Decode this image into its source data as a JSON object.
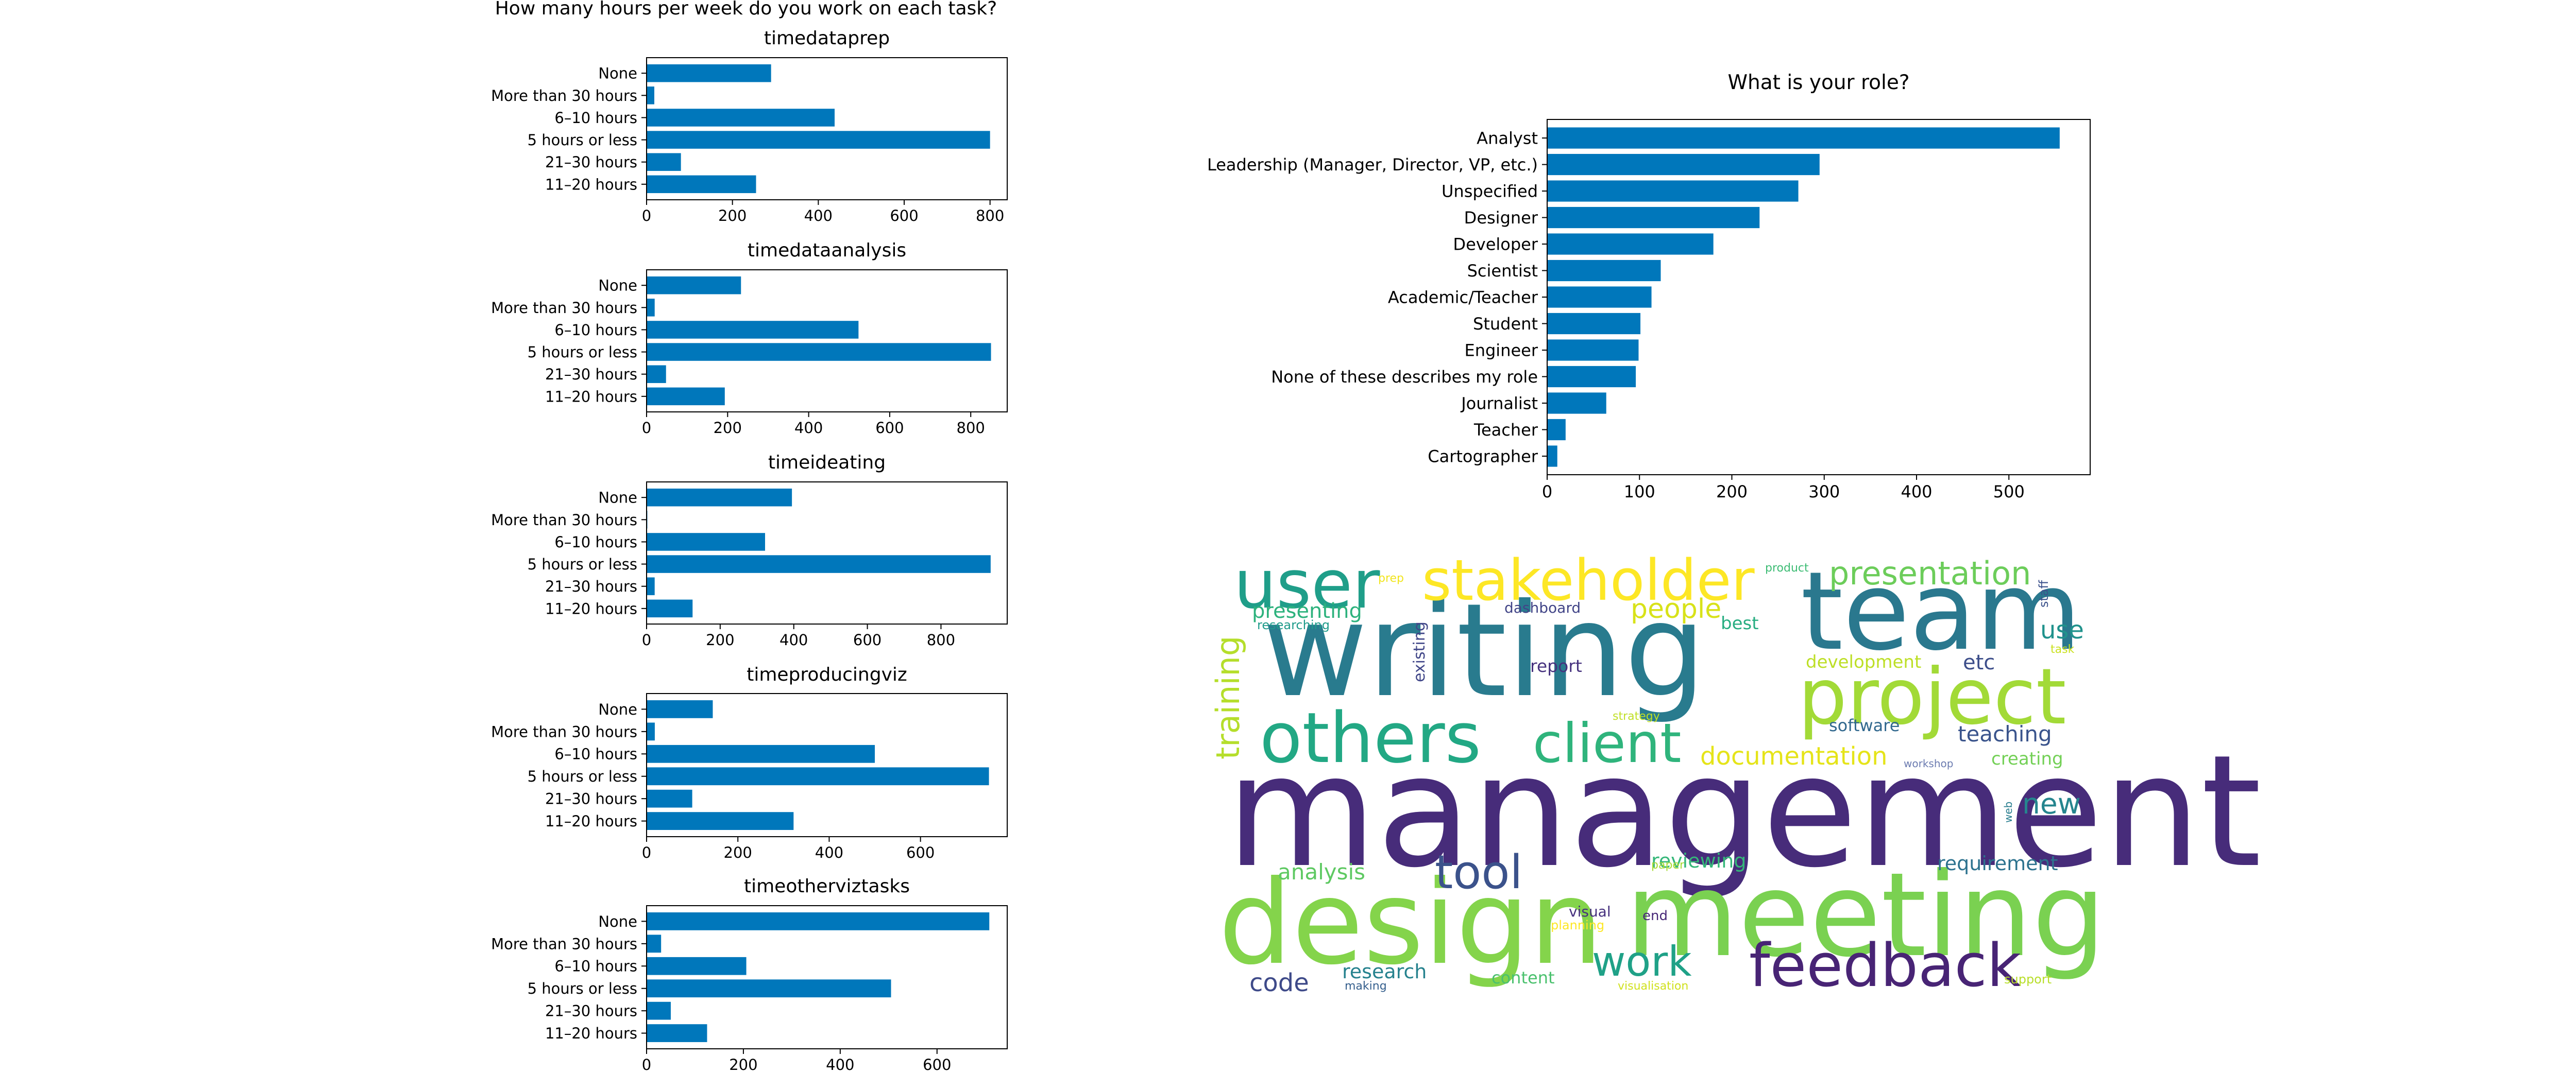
{
  "colors": {
    "bar": "#0077bb",
    "axis": "#000000"
  },
  "suptitle": "How many hours per week do you work on each task?",
  "chart_data": [
    {
      "type": "bar",
      "orientation": "horizontal",
      "title": "timedataprep",
      "categories": [
        "None",
        "More than 30 hours",
        "6–10 hours",
        "5 hours or less",
        "21–30 hours",
        "11–20 hours"
      ],
      "values": [
        290,
        18,
        438,
        800,
        80,
        255
      ],
      "xlim": [
        0,
        840
      ],
      "xticks": [
        0,
        200,
        400,
        600,
        800
      ]
    },
    {
      "type": "bar",
      "orientation": "horizontal",
      "title": "timedataanalysis",
      "categories": [
        "None",
        "More than 30 hours",
        "6–10 hours",
        "5 hours or less",
        "21–30 hours",
        "11–20 hours"
      ],
      "values": [
        233,
        20,
        523,
        850,
        48,
        193
      ],
      "xlim": [
        0,
        890
      ],
      "xticks": [
        0,
        200,
        400,
        600,
        800
      ]
    },
    {
      "type": "bar",
      "orientation": "horizontal",
      "title": "timeideating",
      "categories": [
        "None",
        "More than 30 hours",
        "6–10 hours",
        "5 hours or less",
        "21–30 hours",
        "11–20 hours"
      ],
      "values": [
        395,
        2,
        322,
        935,
        22,
        125
      ],
      "xlim": [
        0,
        980
      ],
      "xticks": [
        0,
        200,
        400,
        600,
        800
      ]
    },
    {
      "type": "bar",
      "orientation": "horizontal",
      "title": "timeproducingviz",
      "categories": [
        "None",
        "More than 30 hours",
        "6–10 hours",
        "5 hours or less",
        "21–30 hours",
        "11–20 hours"
      ],
      "values": [
        145,
        18,
        500,
        750,
        100,
        322
      ],
      "xlim": [
        0,
        790
      ],
      "xticks": [
        0,
        200,
        400,
        600
      ]
    },
    {
      "type": "bar",
      "orientation": "horizontal",
      "title": "timeotherviztasks",
      "categories": [
        "None",
        "More than 30 hours",
        "6–10 hours",
        "5 hours or less",
        "21–30 hours",
        "11–20 hours"
      ],
      "values": [
        708,
        30,
        206,
        505,
        50,
        125
      ],
      "xlim": [
        0,
        745
      ],
      "xticks": [
        0,
        200,
        400,
        600
      ]
    },
    {
      "type": "bar",
      "orientation": "horizontal",
      "title": "What is your role?",
      "categories": [
        "Analyst",
        "Leadership (Manager, Director, VP, etc.)",
        "Unspecified",
        "Designer",
        "Developer",
        "Scientist",
        "Academic/Teacher",
        "Student",
        "Engineer",
        "None of these describes my role",
        "Journalist",
        "Teacher",
        "Cartographer"
      ],
      "values": [
        555,
        295,
        272,
        230,
        180,
        123,
        113,
        101,
        99,
        96,
        64,
        20,
        11
      ],
      "xlim": [
        0,
        588
      ],
      "xticks": [
        0,
        100,
        200,
        300,
        400,
        500
      ]
    }
  ],
  "wordcloud": {
    "words": [
      {
        "text": "management",
        "color": "#472c7a"
      },
      {
        "text": "writing",
        "color": "#297b8e"
      },
      {
        "text": "design",
        "color": "#84d44b"
      },
      {
        "text": "meeting",
        "color": "#7ad151"
      },
      {
        "text": "team",
        "color": "#2a788e"
      },
      {
        "text": "project",
        "color": "#a2da37"
      },
      {
        "text": "others",
        "color": "#22a884"
      },
      {
        "text": "stakeholder",
        "color": "#fde725"
      },
      {
        "text": "user",
        "color": "#1f9e89"
      },
      {
        "text": "feedback",
        "color": "#482475"
      },
      {
        "text": "client",
        "color": "#2fb47c"
      },
      {
        "text": "presentation",
        "color": "#6ccd5a"
      },
      {
        "text": "tool",
        "color": "#3b528b"
      },
      {
        "text": "work",
        "color": "#1fa187"
      },
      {
        "text": "training",
        "color": "#b5de2b"
      },
      {
        "text": "documentation",
        "color": "#e5e419"
      },
      {
        "text": "new",
        "color": "#25858e"
      },
      {
        "text": "code",
        "color": "#3e4a89"
      },
      {
        "text": "use",
        "color": "#20928c"
      },
      {
        "text": "people",
        "color": "#d8e219"
      },
      {
        "text": "analysis",
        "color": "#5ec962"
      },
      {
        "text": "reviewing",
        "color": "#35b779"
      },
      {
        "text": "requirement",
        "color": "#2c728e"
      },
      {
        "text": "teaching",
        "color": "#3a548c"
      },
      {
        "text": "presenting",
        "color": "#2db27d"
      },
      {
        "text": "research",
        "color": "#26828e"
      },
      {
        "text": "creating",
        "color": "#73d056"
      },
      {
        "text": "development",
        "color": "#bddf26"
      },
      {
        "text": "etc",
        "color": "#3d4e8a"
      },
      {
        "text": "software",
        "color": "#31688e"
      },
      {
        "text": "best",
        "color": "#27ad81"
      },
      {
        "text": "report",
        "color": "#46327e"
      },
      {
        "text": "content",
        "color": "#4ac16d"
      },
      {
        "text": "existing",
        "color": "#404688"
      },
      {
        "text": "dashboard",
        "color": "#414487"
      },
      {
        "text": "visual",
        "color": "#46307e"
      },
      {
        "text": "researching",
        "color": "#1e9b8a"
      },
      {
        "text": "strategy",
        "color": "#c0df25"
      },
      {
        "text": "workshop",
        "color": "#6b7bb0"
      },
      {
        "text": "planning",
        "color": "#fde725"
      },
      {
        "text": "end",
        "color": "#482878"
      },
      {
        "text": "paper",
        "color": "#a8db34"
      },
      {
        "text": "making",
        "color": "#355f8d"
      },
      {
        "text": "support",
        "color": "#b8de29"
      },
      {
        "text": "visualisation",
        "color": "#d0e11c"
      },
      {
        "text": "product",
        "color": "#3dbc74"
      },
      {
        "text": "prep",
        "color": "#f1e51d"
      },
      {
        "text": "staff",
        "color": "#3b518b"
      },
      {
        "text": "task",
        "color": "#cae11f"
      },
      {
        "text": "web",
        "color": "#287d8e"
      }
    ]
  }
}
